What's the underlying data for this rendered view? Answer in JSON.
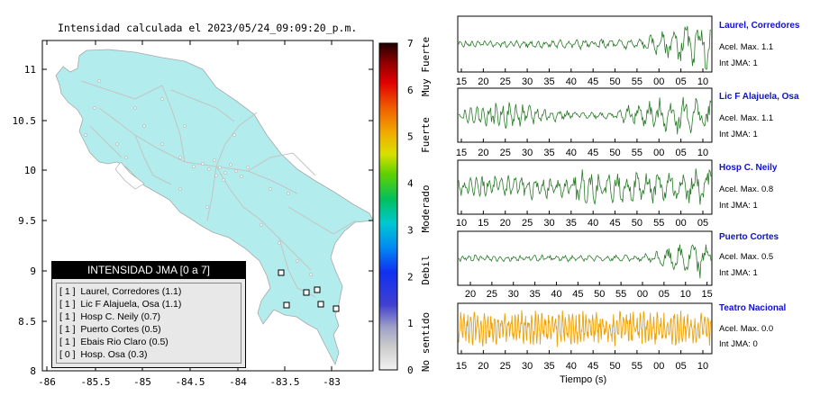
{
  "title": "Intensidad calculada el 2023/05/24_09:09:20_p.m.",
  "map": {
    "x_ticks": [
      "-86",
      "-85.5",
      "-85",
      "-84.5",
      "-84",
      "-83.5",
      "-83"
    ],
    "y_ticks": [
      "11",
      "10.5",
      "10",
      "9.5",
      "9",
      "8.5",
      "8"
    ],
    "land_color": "#b2ecec",
    "legend": {
      "title": "INTENSIDAD JMA [0 a 7]",
      "items": [
        "[ 1 ]  Laurel, Corredores (1.1)",
        "[ 1 ]  Lic F Alajuela, Osa (1.1)",
        "[ 1 ]  Hosp C. Neily (0.7)",
        "[ 1 ]  Puerto Cortes (0.5)",
        "[ 1 ]  Ebais Rio Claro (0.5)",
        "[ 0 ]  Hosp. Osa (0.3)"
      ]
    }
  },
  "colorbar": {
    "ticks": [
      "7",
      "6",
      "5",
      "4",
      "3",
      "2",
      "1",
      "0"
    ],
    "categories": [
      "Muy Fuerte",
      "Fuerte",
      "Moderado",
      "Debil",
      "No sentido"
    ]
  },
  "stations": [
    {
      "name": "Laurel, Corredores",
      "acel": "Acel. Max. 1.1",
      "int": "Int JMA: 1",
      "ticks": [
        "15",
        "20",
        "25",
        "30",
        "35",
        "40",
        "45",
        "50",
        "55",
        "00",
        "05",
        "10"
      ],
      "color": "#2a7a2a"
    },
    {
      "name": "Lic F Alajuela, Osa",
      "acel": "Acel. Max. 1.1",
      "int": "Int JMA: 1",
      "ticks": [
        "15",
        "20",
        "25",
        "30",
        "35",
        "40",
        "45",
        "50",
        "55",
        "00",
        "05",
        "10"
      ],
      "color": "#2a7a2a"
    },
    {
      "name": "Hosp C. Neily",
      "acel": "Acel. Max. 0.8",
      "int": "Int JMA: 1",
      "ticks": [
        "10",
        "15",
        "20",
        "25",
        "30",
        "35",
        "40",
        "45",
        "50",
        "55",
        "00",
        "05"
      ],
      "color": "#2a7a2a"
    },
    {
      "name": "Puerto Cortes",
      "acel": "Acel. Max. 0.5",
      "int": "Int JMA: 1",
      "ticks": [
        "20",
        "25",
        "30",
        "35",
        "40",
        "45",
        "50",
        "55",
        "00",
        "05",
        "10",
        "15"
      ],
      "color": "#2a7a2a"
    },
    {
      "name": "Teatro Nacional",
      "acel": "Acel. Max. 0.0",
      "int": "Int JMA: 0",
      "ticks": [
        "15",
        "20",
        "25",
        "30",
        "35",
        "40",
        "45",
        "50",
        "55",
        "00",
        "05",
        "10"
      ],
      "color": "#f0a000"
    }
  ],
  "xaxis_label": "Tiempo (s)",
  "chart_data": {
    "type": "line",
    "title": "Intensidad calculada el 2023/05/24_09:09:20_p.m.",
    "xlabel": "Tiempo (s)",
    "series": [
      {
        "name": "Laurel, Corredores",
        "acel_max": 1.1,
        "int_jma": 1
      },
      {
        "name": "Lic F Alajuela, Osa",
        "acel_max": 1.1,
        "int_jma": 1
      },
      {
        "name": "Hosp C. Neily",
        "acel_max": 0.8,
        "int_jma": 1
      },
      {
        "name": "Puerto Cortes",
        "acel_max": 0.5,
        "int_jma": 1
      },
      {
        "name": "Teatro Nacional",
        "acel_max": 0.0,
        "int_jma": 0
      }
    ],
    "map_xlim": [
      -86,
      -82.6
    ],
    "map_ylim": [
      8,
      11.3
    ],
    "colorbar_range": [
      0,
      7
    ]
  }
}
